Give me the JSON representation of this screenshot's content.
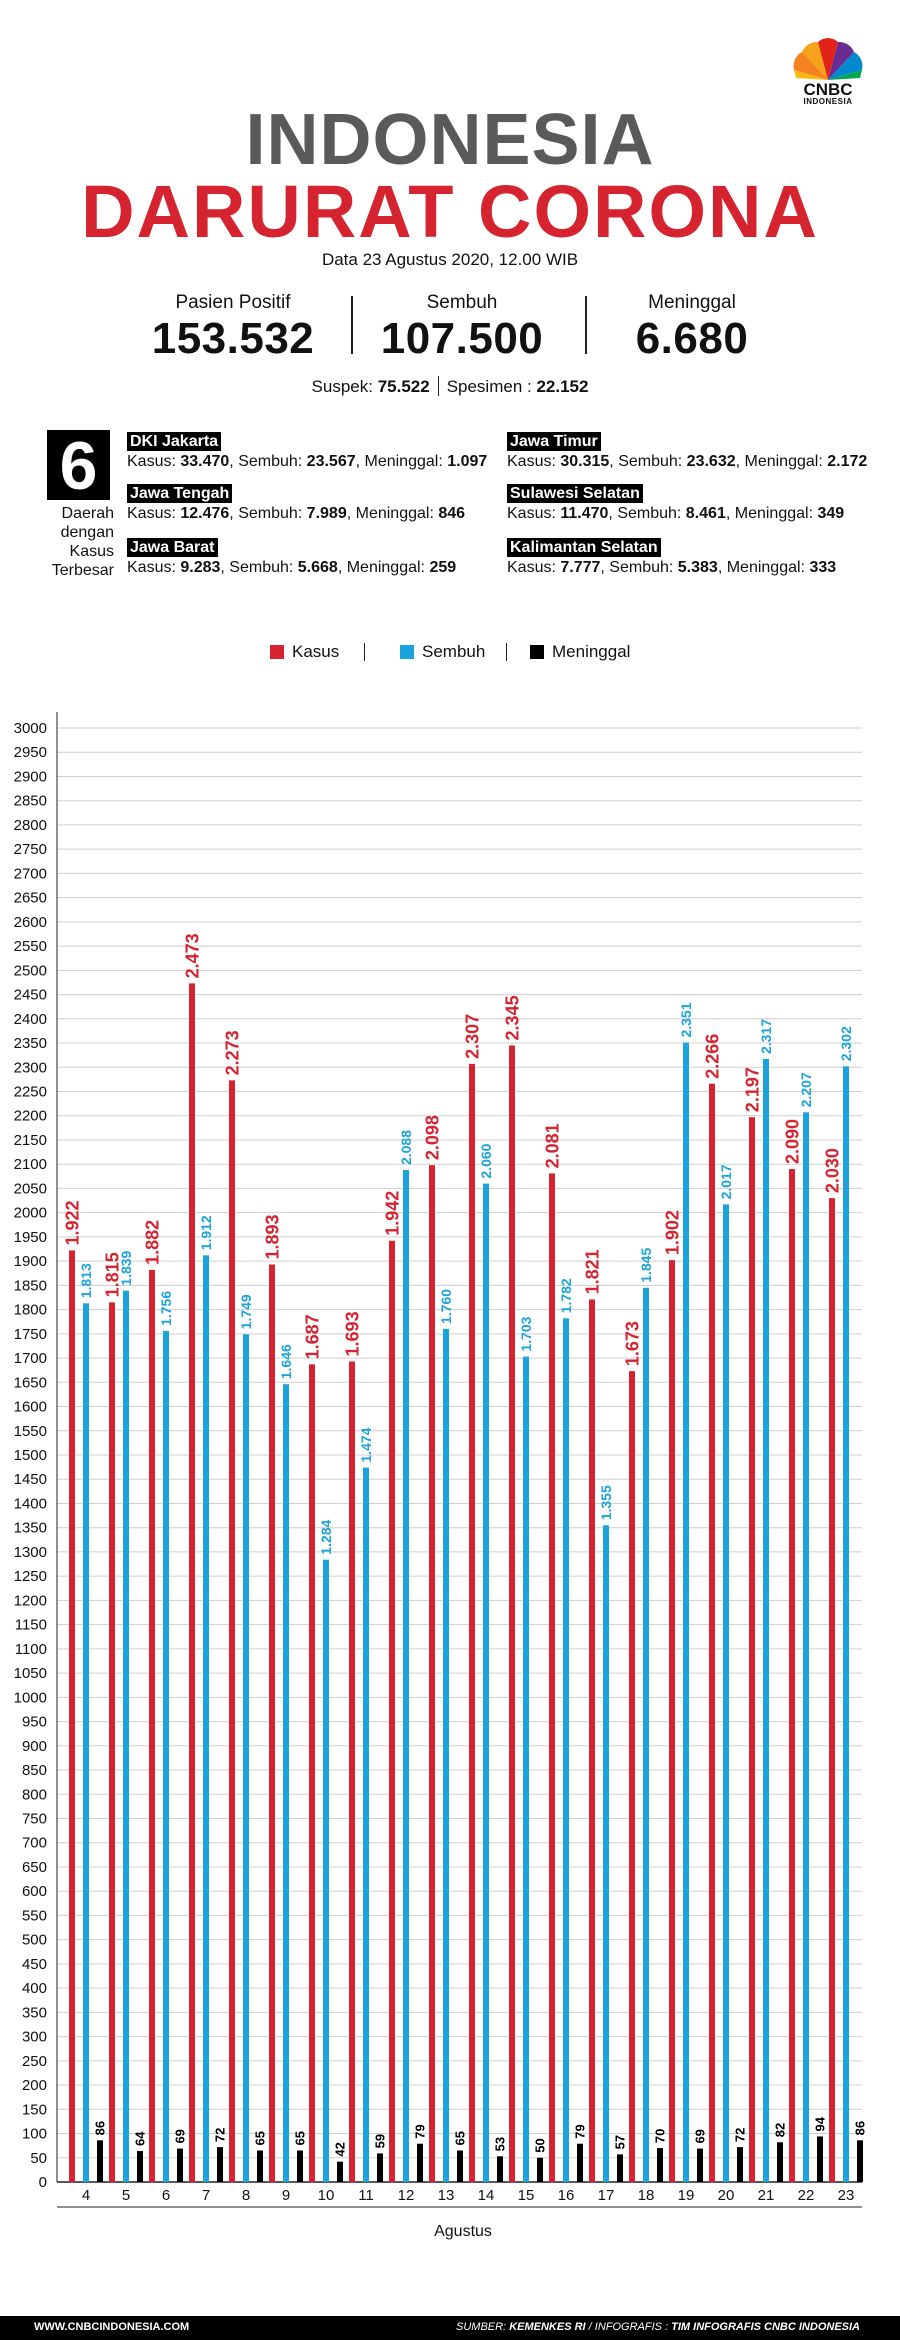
{
  "brand": {
    "name": "CNBC",
    "sub": "INDONESIA"
  },
  "title_line1": "INDONESIA",
  "title_line2": "DARURAT CORONA",
  "date": "Data 23 Agustus 2020, 12.00 WIB",
  "stats": [
    {
      "label": "Pasien Positif",
      "value": "153.532"
    },
    {
      "label": "Sembuh",
      "value": "107.500"
    },
    {
      "label": "Meninggal",
      "value": "6.680"
    }
  ],
  "suspek_label": "Suspek: ",
  "suspek_value": "75.522",
  "spesimen_label": "Spesimen : ",
  "spesimen_value": "22.152",
  "top_count": "6",
  "top_label_lines": [
    "Daerah",
    "dengan",
    "Kasus",
    "Terbesar"
  ],
  "regions": [
    {
      "name": "DKI Jakarta",
      "kasus": "33.470",
      "sembuh": "23.567",
      "meninggal": "1.097"
    },
    {
      "name": "Jawa Tengah",
      "kasus": "12.476",
      "sembuh": "7.989",
      "meninggal": "846"
    },
    {
      "name": "Jawa Barat",
      "kasus": "9.283",
      "sembuh": "5.668",
      "meninggal": "259"
    },
    {
      "name": "Jawa Timur",
      "kasus": "30.315",
      "sembuh": "23.632",
      "meninggal": "2.172"
    },
    {
      "name": "Sulawesi Selatan",
      "kasus": "11.470",
      "sembuh": "8.461",
      "meninggal": "349"
    },
    {
      "name": "Kalimantan Selatan",
      "kasus": "7.777",
      "sembuh": "5.383",
      "meninggal": "333"
    }
  ],
  "region_labels": {
    "kasus": "Kasus: ",
    "sembuh": "Sembuh: ",
    "meninggal": "Meninggal: "
  },
  "chart_data": {
    "type": "bar",
    "xlabel": "Agustus",
    "ylabel": "",
    "ylim": [
      0,
      3000
    ],
    "grid": true,
    "legend_position": "top-center",
    "categories": [
      "4",
      "5",
      "6",
      "7",
      "8",
      "9",
      "10",
      "11",
      "12",
      "13",
      "14",
      "15",
      "16",
      "17",
      "18",
      "19",
      "20",
      "21",
      "22",
      "23"
    ],
    "series": [
      {
        "name": "Kasus",
        "color": "#d52330",
        "values": [
          1922,
          1815,
          1882,
          2473,
          2273,
          1893,
          1687,
          1693,
          1942,
          2098,
          2307,
          2345,
          2081,
          1821,
          1673,
          1902,
          2266,
          2197,
          2090,
          2030
        ],
        "labels": [
          "1.922",
          "1.815",
          "1.882",
          "2.473",
          "2.273",
          "1.893",
          "1.687",
          "1.693",
          "1.942",
          "2.098",
          "2.307",
          "2.345",
          "2.081",
          "1.821",
          "1.673",
          "1.902",
          "2.266",
          "2.197",
          "2.090",
          "2.030"
        ]
      },
      {
        "name": "Sembuh",
        "color": "#1aa3dc",
        "values": [
          1813,
          1839,
          1756,
          1912,
          1749,
          1646,
          1284,
          1474,
          2088,
          1760,
          2060,
          1703,
          1782,
          1355,
          1845,
          2351,
          2017,
          2317,
          2207,
          2302
        ],
        "labels": [
          "1.813",
          "1.839",
          "1.756",
          "1.912",
          "1.749",
          "1.646",
          "1.284",
          "1.474",
          "2.088",
          "1.760",
          "2.060",
          "1.703",
          "1.782",
          "1.355",
          "1.845",
          "2.351",
          "2.017",
          "2.317",
          "2.207",
          "2.302"
        ]
      },
      {
        "name": "Meninggal",
        "color": "#000000",
        "values": [
          86,
          64,
          69,
          72,
          65,
          65,
          42,
          59,
          79,
          65,
          53,
          50,
          79,
          57,
          70,
          69,
          72,
          82,
          94,
          86
        ],
        "labels": [
          "86",
          "64",
          "69",
          "72",
          "65",
          "65",
          "42",
          "59",
          "79",
          "65",
          "53",
          "50",
          "79",
          "57",
          "70",
          "69",
          "72",
          "82",
          "94",
          "86"
        ]
      }
    ],
    "y_ticks": [
      "3000",
      "2950",
      "2900",
      "2850",
      "2800",
      "2750",
      "2700",
      "2650",
      "2600",
      "2550",
      "2500",
      "2450",
      "2400",
      "2350",
      "2300",
      "2250",
      "2200",
      "2150",
      "2100",
      "2050",
      "2000",
      "1950",
      "1900",
      "1850",
      "1800",
      "1750",
      "1700",
      "1650",
      "1600",
      "1550",
      "1500",
      "1450",
      "1400",
      "1350",
      "1300",
      "1250",
      "1200",
      "1150",
      "1100",
      "1050",
      "1000",
      "950",
      "900",
      "850",
      "800",
      "750",
      "700",
      "650",
      "600",
      "550",
      "500",
      "450",
      "400",
      "350",
      "300",
      "250",
      "200",
      "150",
      "100",
      "50",
      "0"
    ]
  },
  "footer": {
    "site": "WWW.CNBCINDONESIA.COM",
    "source_label": "SUMBER: ",
    "source": "KEMENKES RI",
    "info_label": " / INFOGRAFIS : ",
    "info": "TIM INFOGRAFIS CNBC INDONESIA"
  }
}
